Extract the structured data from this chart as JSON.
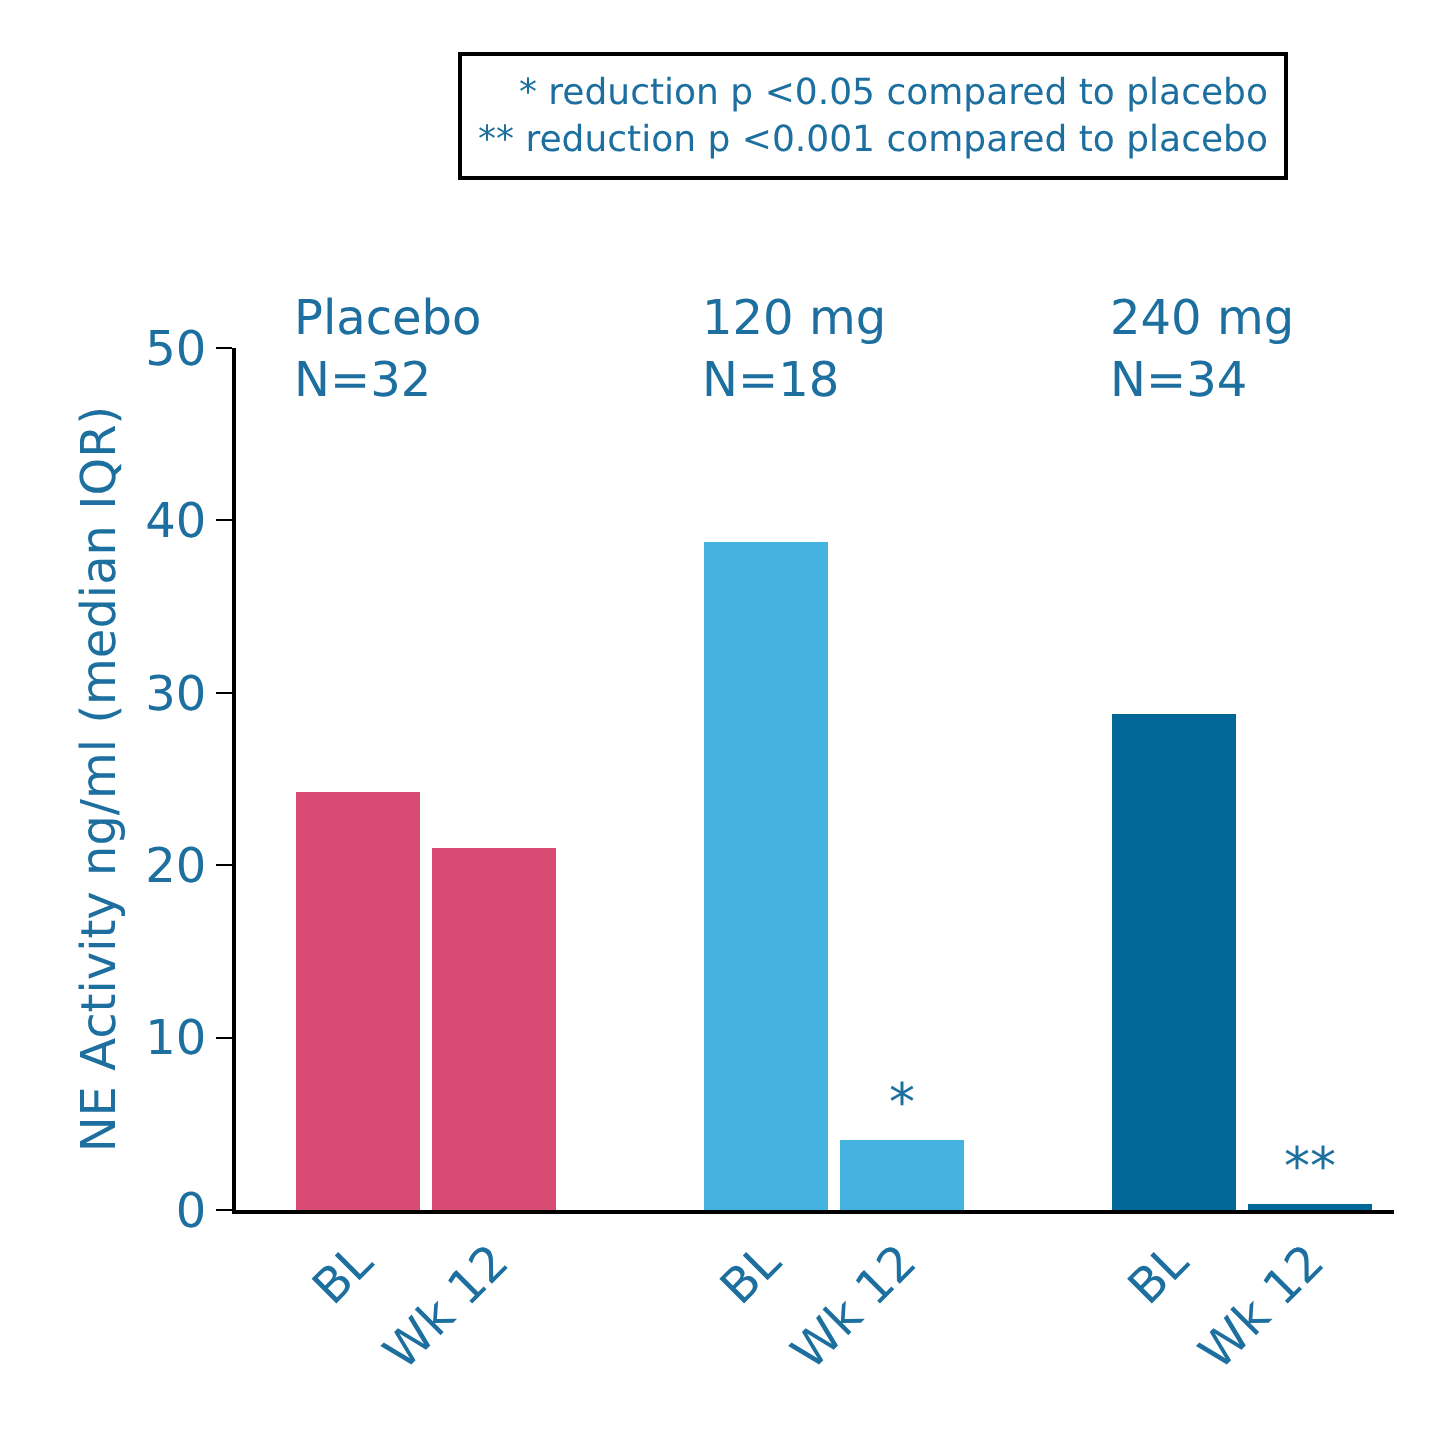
{
  "chart_data": {
    "type": "bar",
    "ylabel": "NE Activity ng/ml (median IQR)",
    "categories": [
      "BL",
      "Wk 12",
      "BL",
      "Wk 12",
      "BL",
      "Wk 12"
    ],
    "values": [
      24.2,
      21.0,
      38.7,
      4.1,
      28.8,
      0.4
    ],
    "colors": [
      "#d94b72",
      "#d94b72",
      "#44b3e0",
      "#44b3e0",
      "#006796",
      "#006796"
    ],
    "value_labels": [
      null,
      null,
      null,
      "*",
      null,
      "**"
    ],
    "annotations": [
      "* reduction p <0.05 compared to placebo\n** reduction p <0.001 compared to placebo",
      "Placebo\nN=32",
      "120 mg\nN=18",
      "240 mg\nN=34"
    ],
    "ylim": [
      0,
      50
    ],
    "yticks": [
      0,
      10,
      20,
      30,
      40,
      50
    ]
  }
}
